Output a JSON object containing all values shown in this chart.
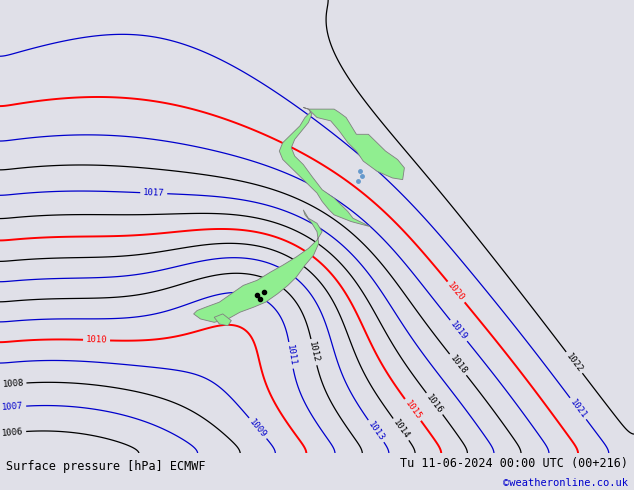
{
  "title_left": "Surface pressure [hPa] ECMWF",
  "title_right": "Tu 11-06-2024 00:00 UTC (00+216)",
  "credit": "©weatheronline.co.uk",
  "bg_color": "#e0e0e8",
  "nz_color": "#90ee90",
  "land_edge_color": "#808080",
  "bottom_bar_color": "#b0b0b0"
}
